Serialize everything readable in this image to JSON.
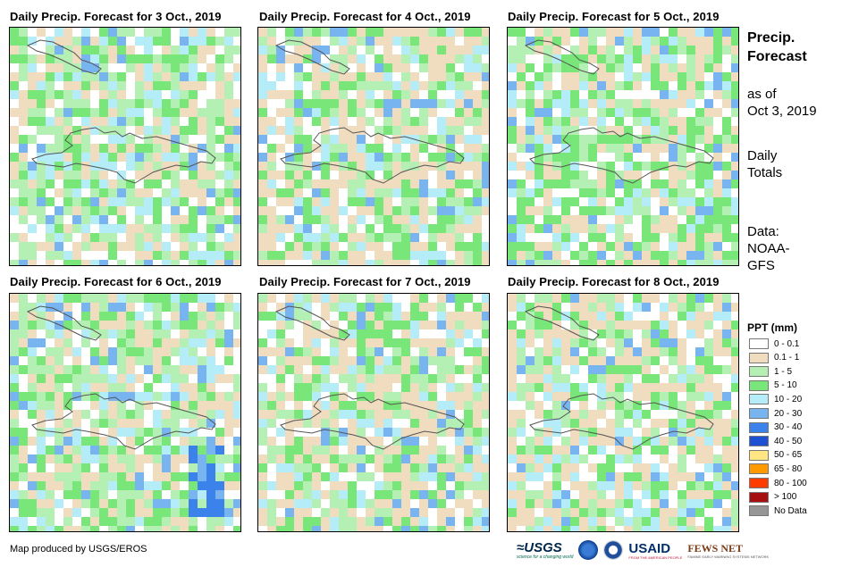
{
  "panels": [
    {
      "title": "Daily Precip. Forecast for 3 Oct., 2019"
    },
    {
      "title": "Daily Precip. Forecast for 4 Oct., 2019"
    },
    {
      "title": "Daily Precip. Forecast for 5 Oct., 2019"
    },
    {
      "title": "Daily Precip. Forecast for 6 Oct., 2019"
    },
    {
      "title": "Daily Precip. Forecast for 7 Oct., 2019"
    },
    {
      "title": "Daily Precip. Forecast for 8 Oct., 2019"
    }
  ],
  "sidebar": {
    "title_line1": "Precip.",
    "title_line2": "Forecast",
    "asof_line1": "as of",
    "asof_line2": "Oct 3, 2019",
    "totals_line1": "Daily",
    "totals_line2": "Totals",
    "data_line1": "Data:",
    "data_line2": "NOAA-",
    "data_line3": "GFS"
  },
  "legend": {
    "title": "PPT (mm)",
    "items": [
      {
        "label": "0 - 0.1",
        "color": "#ffffff"
      },
      {
        "label": "0.1 - 1",
        "color": "#f0dcbe"
      },
      {
        "label": "1 - 5",
        "color": "#b4f0b4"
      },
      {
        "label": "5 - 10",
        "color": "#78e678"
      },
      {
        "label": "10 - 20",
        "color": "#b4ecf8"
      },
      {
        "label": "20 - 30",
        "color": "#78b4f0"
      },
      {
        "label": "30 - 40",
        "color": "#3c82eb"
      },
      {
        "label": "40 - 50",
        "color": "#1e50d2"
      },
      {
        "label": "50 - 65",
        "color": "#ffe682"
      },
      {
        "label": "65 - 80",
        "color": "#ff9b00"
      },
      {
        "label": "80 - 100",
        "color": "#ff3c00"
      },
      {
        "label": "> 100",
        "color": "#a50f0f"
      },
      {
        "label": "No Data",
        "color": "#969696"
      }
    ]
  },
  "footer": {
    "credit": "Map produced by USGS/EROS"
  },
  "logos": {
    "usgs": "≈USGS",
    "usgs_tagline": "science for a changing world",
    "usaid": "USAID",
    "usaid_tagline": "FROM THE AMERICAN PEOPLE",
    "fews": "FEWS NET",
    "fews_tagline": "FAMINE EARLY WARNING SYSTEMS NETWORK"
  },
  "map_style": {
    "dominant_classes": [
      2,
      1,
      3,
      2,
      1,
      1
    ]
  }
}
